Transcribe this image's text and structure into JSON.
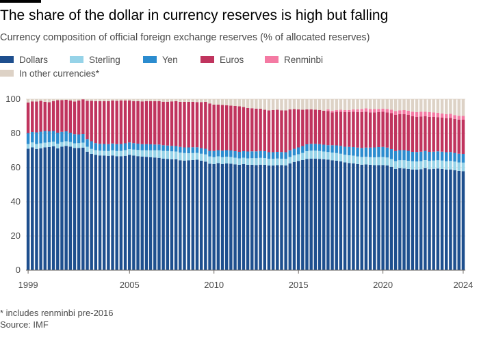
{
  "header": {
    "title": "The share of the dollar in currency reserves is high but falling",
    "subtitle": "Currency composition of official foreign exchange reserves (% of allocated reserves)"
  },
  "footer": {
    "footnote": "* includes renminbi pre-2016",
    "source": "Source: IMF"
  },
  "colors": {
    "dollars": "#1e4f8e",
    "sterling": "#96d3e8",
    "yen": "#2b8ccf",
    "euros": "#c0345e",
    "renminbi": "#f47aa3",
    "other": "#ddd2c6"
  },
  "chart_data": {
    "type": "bar",
    "stacked": true,
    "title": "The share of the dollar in currency reserves is high but falling",
    "ylabel": "% of allocated reserves",
    "ylim": [
      0,
      100
    ],
    "yticks": [
      0,
      20,
      40,
      60,
      80,
      100
    ],
    "xticks": [
      "1999",
      "2005",
      "2010",
      "2015",
      "2020",
      "2024"
    ],
    "grid": true,
    "legend": [
      {
        "key": "dollars",
        "label": "Dollars"
      },
      {
        "key": "sterling",
        "label": "Sterling"
      },
      {
        "key": "yen",
        "label": "Yen"
      },
      {
        "key": "euros",
        "label": "Euros"
      },
      {
        "key": "renminbi",
        "label": "Renminbi"
      },
      {
        "key": "other",
        "label": "In other currencies*"
      }
    ],
    "categories": [
      "1999 Q1",
      "1999 Q2",
      "1999 Q3",
      "1999 Q4",
      "2000 Q1",
      "2000 Q2",
      "2000 Q3",
      "2000 Q4",
      "2001 Q1",
      "2001 Q2",
      "2001 Q3",
      "2001 Q4",
      "2002 Q1",
      "2002 Q2",
      "2002 Q3",
      "2002 Q4",
      "2003 Q1",
      "2003 Q2",
      "2003 Q3",
      "2003 Q4",
      "2004 Q1",
      "2004 Q2",
      "2004 Q3",
      "2004 Q4",
      "2005 Q1",
      "2005 Q2",
      "2005 Q3",
      "2005 Q4",
      "2006 Q1",
      "2006 Q2",
      "2006 Q3",
      "2006 Q4",
      "2007 Q1",
      "2007 Q2",
      "2007 Q3",
      "2007 Q4",
      "2008 Q1",
      "2008 Q2",
      "2008 Q3",
      "2008 Q4",
      "2009 Q1",
      "2009 Q2",
      "2009 Q3",
      "2009 Q4",
      "2010 Q1",
      "2010 Q2",
      "2010 Q3",
      "2010 Q4",
      "2011 Q1",
      "2011 Q2",
      "2011 Q3",
      "2011 Q4",
      "2012 Q1",
      "2012 Q2",
      "2012 Q3",
      "2012 Q4",
      "2013 Q1",
      "2013 Q2",
      "2013 Q3",
      "2013 Q4",
      "2014 Q1",
      "2014 Q2",
      "2014 Q3",
      "2014 Q4",
      "2015 Q1",
      "2015 Q2",
      "2015 Q3",
      "2015 Q4",
      "2016 Q1",
      "2016 Q2",
      "2016 Q3",
      "2016 Q4",
      "2017 Q1",
      "2017 Q2",
      "2017 Q3",
      "2017 Q4",
      "2018 Q1",
      "2018 Q2",
      "2018 Q3",
      "2018 Q4",
      "2019 Q1",
      "2019 Q2",
      "2019 Q3",
      "2019 Q4",
      "2020 Q1",
      "2020 Q2",
      "2020 Q3",
      "2020 Q4",
      "2021 Q1",
      "2021 Q2",
      "2021 Q3",
      "2021 Q4",
      "2022 Q1",
      "2022 Q2",
      "2022 Q3",
      "2022 Q4",
      "2023 Q1",
      "2023 Q2",
      "2023 Q3",
      "2023 Q4",
      "2024 Q1",
      "2024 Q2",
      "2024 Q3",
      "2024 Q4"
    ],
    "series": [
      {
        "key": "dollars",
        "name": "Dollars",
        "values": [
          71.0,
          71.8,
          70.9,
          71.3,
          71.8,
          72.0,
          72.4,
          71.2,
          72.2,
          72.7,
          72.3,
          71.5,
          71.5,
          71.7,
          69.3,
          68.0,
          67.4,
          67.1,
          67.0,
          66.9,
          67.1,
          66.6,
          66.6,
          66.9,
          67.4,
          67.0,
          66.7,
          66.4,
          66.3,
          66.1,
          65.9,
          65.7,
          65.2,
          65.0,
          64.8,
          64.8,
          64.3,
          64.1,
          64.2,
          64.4,
          64.6,
          64.0,
          63.5,
          62.3,
          62.0,
          62.6,
          62.1,
          62.4,
          62.3,
          61.9,
          61.6,
          62.0,
          61.6,
          61.6,
          61.5,
          61.7,
          61.6,
          61.2,
          61.2,
          61.4,
          61.4,
          61.3,
          62.4,
          63.3,
          63.9,
          64.4,
          65.0,
          65.2,
          65.2,
          65.1,
          64.9,
          64.7,
          64.3,
          64.0,
          63.6,
          63.0,
          62.7,
          62.5,
          62.0,
          61.7,
          61.8,
          61.6,
          61.4,
          61.4,
          61.5,
          61.3,
          60.5,
          59.2,
          59.6,
          59.5,
          59.2,
          58.9,
          58.8,
          59.0,
          59.6,
          59.1,
          59.3,
          59.4,
          59.2,
          58.8,
          58.9,
          58.5,
          58.0,
          57.9
        ]
      },
      {
        "key": "sterling",
        "name": "Sterling",
        "values": [
          2.8,
          2.9,
          2.9,
          2.9,
          2.8,
          2.8,
          2.8,
          2.8,
          2.7,
          2.7,
          2.7,
          2.7,
          2.8,
          2.9,
          2.9,
          2.9,
          2.8,
          2.8,
          2.8,
          2.8,
          3.0,
          3.1,
          3.2,
          3.3,
          3.4,
          3.5,
          3.6,
          3.7,
          3.8,
          4.0,
          4.2,
          4.4,
          4.6,
          4.7,
          4.7,
          4.6,
          4.5,
          4.4,
          4.2,
          4.1,
          4.0,
          4.1,
          4.2,
          4.2,
          4.1,
          4.0,
          4.0,
          4.0,
          3.9,
          3.9,
          3.8,
          3.8,
          3.8,
          3.9,
          4.0,
          4.0,
          4.0,
          3.9,
          3.9,
          3.9,
          3.8,
          3.8,
          3.8,
          3.8,
          3.9,
          4.2,
          4.6,
          4.7,
          4.7,
          4.6,
          4.5,
          4.4,
          4.5,
          4.5,
          4.5,
          4.5,
          4.5,
          4.5,
          4.5,
          4.5,
          4.5,
          4.5,
          4.6,
          4.7,
          4.7,
          4.6,
          4.5,
          4.6,
          4.7,
          4.8,
          4.8,
          4.8,
          4.8,
          4.8,
          4.8,
          4.8,
          4.8,
          4.9,
          4.9,
          4.9,
          5.0,
          5.0,
          5.0,
          5.0
        ]
      },
      {
        "key": "yen",
        "name": "Yen",
        "values": [
          6.4,
          6.1,
          6.8,
          6.8,
          6.8,
          6.4,
          6.2,
          6.4,
          6.0,
          5.8,
          5.4,
          5.3,
          5.1,
          5.0,
          4.5,
          4.5,
          4.1,
          4.0,
          4.0,
          4.0,
          4.0,
          4.0,
          4.0,
          4.0,
          3.9,
          3.8,
          3.7,
          3.6,
          3.6,
          3.5,
          3.4,
          3.4,
          3.3,
          3.2,
          3.2,
          3.2,
          3.3,
          3.3,
          3.4,
          3.4,
          3.3,
          3.3,
          3.3,
          3.3,
          3.6,
          3.6,
          3.8,
          3.8,
          3.8,
          3.8,
          3.8,
          3.8,
          4.0,
          4.0,
          4.0,
          4.0,
          4.0,
          3.9,
          3.9,
          3.9,
          3.9,
          3.9,
          3.9,
          3.9,
          4.0,
          4.0,
          4.0,
          4.0,
          4.0,
          4.0,
          4.0,
          4.0,
          4.3,
          4.5,
          4.6,
          4.7,
          4.9,
          5.0,
          5.2,
          5.3,
          5.4,
          5.6,
          5.8,
          5.9,
          5.9,
          5.8,
          5.8,
          5.9,
          5.9,
          5.9,
          5.8,
          5.5,
          5.5,
          5.5,
          5.4,
          5.3,
          5.2,
          5.2,
          5.2,
          5.3,
          5.2,
          5.1,
          5.1,
          5.1
        ]
      },
      {
        "key": "euros",
        "name": "Euros",
        "values": [
          17.9,
          17.9,
          18.0,
          18.0,
          17.0,
          17.0,
          17.5,
          19.0,
          18.6,
          18.4,
          18.8,
          19.1,
          19.8,
          20.3,
          22.3,
          23.7,
          24.5,
          24.9,
          25.0,
          25.1,
          25.1,
          25.3,
          25.5,
          25.0,
          24.6,
          24.5,
          24.8,
          25.0,
          25.1,
          25.2,
          25.3,
          25.3,
          25.4,
          25.6,
          26.0,
          26.2,
          26.3,
          26.6,
          26.6,
          26.5,
          26.4,
          26.9,
          27.4,
          27.7,
          27.1,
          26.6,
          26.7,
          26.2,
          26.2,
          26.4,
          26.6,
          25.8,
          25.4,
          25.2,
          25.0,
          24.7,
          24.2,
          24.4,
          24.6,
          24.6,
          24.4,
          24.4,
          23.9,
          23.2,
          22.2,
          21.2,
          20.4,
          20.2,
          20.0,
          20.0,
          19.9,
          19.9,
          19.2,
          19.6,
          20.0,
          20.2,
          20.3,
          20.6,
          20.8,
          21.0,
          21.0,
          20.6,
          20.5,
          20.4,
          20.5,
          20.6,
          21.0,
          21.1,
          21.0,
          21.0,
          21.0,
          20.9,
          20.5,
          20.6,
          20.2,
          20.5,
          20.3,
          20.0,
          19.9,
          19.9,
          20.0,
          19.9,
          20.0,
          20.0
        ]
      },
      {
        "key": "renminbi",
        "name": "Renminbi",
        "values": [
          0,
          0,
          0,
          0,
          0,
          0,
          0,
          0,
          0,
          0,
          0,
          0,
          0,
          0,
          0,
          0,
          0,
          0,
          0,
          0,
          0,
          0,
          0,
          0,
          0,
          0,
          0,
          0,
          0,
          0,
          0,
          0,
          0,
          0,
          0,
          0,
          0,
          0,
          0,
          0,
          0,
          0,
          0,
          0,
          0,
          0,
          0,
          0,
          0,
          0,
          0,
          0,
          0,
          0,
          0,
          0,
          0,
          0,
          0,
          0,
          0,
          0,
          0,
          0,
          0,
          0,
          0,
          0,
          0,
          0,
          0,
          1.0,
          1.0,
          1.1,
          1.1,
          1.2,
          1.3,
          1.4,
          1.6,
          1.8,
          1.9,
          1.9,
          2.0,
          1.9,
          1.9,
          2.0,
          2.0,
          2.2,
          2.3,
          2.4,
          2.5,
          2.6,
          2.8,
          2.8,
          2.7,
          2.7,
          2.6,
          2.5,
          2.4,
          2.3,
          2.3,
          2.2,
          2.2,
          2.2
        ]
      },
      {
        "key": "other",
        "name": "In other currencies*",
        "values": [
          1.9,
          1.3,
          1.4,
          1.0,
          1.6,
          1.8,
          1.1,
          0.6,
          0.5,
          0.4,
          0.8,
          1.4,
          0.8,
          0.1,
          1.0,
          0.9,
          1.2,
          1.2,
          1.2,
          1.2,
          0.8,
          1.0,
          0.7,
          0.8,
          0.7,
          1.2,
          1.2,
          1.3,
          1.2,
          1.2,
          1.2,
          1.2,
          1.5,
          1.5,
          1.3,
          1.2,
          1.6,
          1.6,
          1.6,
          1.6,
          1.7,
          1.7,
          1.6,
          2.5,
          3.2,
          3.2,
          3.4,
          3.6,
          3.8,
          4.0,
          4.2,
          4.6,
          5.2,
          5.3,
          5.5,
          5.6,
          6.2,
          6.6,
          6.4,
          6.2,
          6.5,
          6.6,
          6.0,
          5.8,
          6.0,
          6.2,
          6.0,
          5.9,
          6.1,
          6.3,
          6.7,
          6.0,
          6.7,
          6.3,
          6.2,
          6.4,
          6.3,
          6.0,
          5.9,
          5.7,
          5.4,
          5.8,
          5.7,
          5.7,
          5.4,
          5.7,
          6.2,
          7.0,
          6.5,
          6.4,
          6.7,
          7.3,
          7.6,
          7.4,
          7.3,
          7.6,
          7.8,
          8.0,
          8.4,
          8.8,
          8.7,
          9.3,
          9.7,
          9.8
        ]
      }
    ]
  }
}
